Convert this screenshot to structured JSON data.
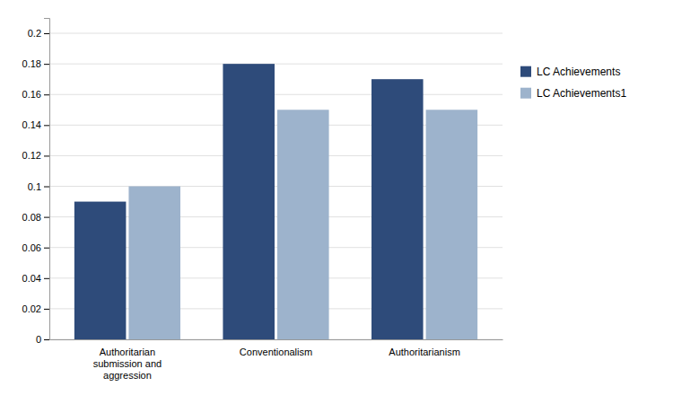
{
  "chart_data": {
    "type": "bar",
    "categories": [
      "Authoritarian\nsubmission and\naggression",
      "Conventionalism",
      "Authoritarianism"
    ],
    "series": [
      {
        "name": "LC Achievements",
        "color": "#2E4B7A",
        "values": [
          0.09,
          0.18,
          0.17
        ]
      },
      {
        "name": "LC Achievements1",
        "color": "#9DB3CC",
        "values": [
          0.1,
          0.15,
          0.15
        ]
      }
    ],
    "ylim": [
      0,
      0.21
    ],
    "yticks": [
      0,
      0.02,
      0.04,
      0.06,
      0.08,
      0.1,
      0.12,
      0.14,
      0.16,
      0.18,
      0.2
    ],
    "grid": true,
    "legend": "right"
  }
}
